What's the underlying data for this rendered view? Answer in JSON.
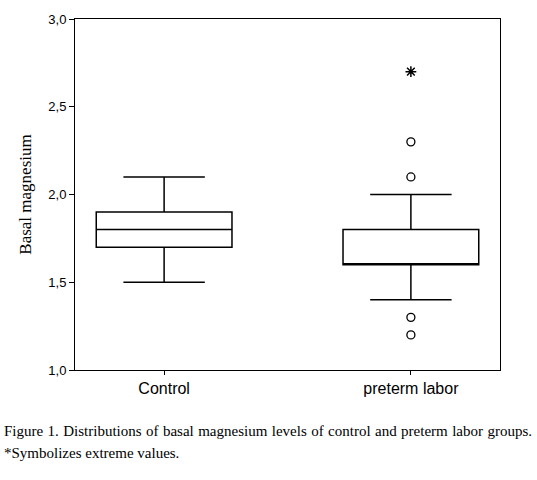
{
  "chart_data": {
    "type": "box",
    "caption": "Figure 1. Distributions of basal magnesium levels of control and preterm labor groups. *Symbolizes extreme values.",
    "y_label": "Basal magnesium",
    "categories": [
      "Control",
      "preterm labor"
    ],
    "boxes": [
      {
        "name": "Control",
        "lowerfence": 1.5,
        "q1": 1.7,
        "median": 1.8,
        "q3": 1.9,
        "upperfence": 2.1,
        "outliers": [],
        "extremes": []
      },
      {
        "name": "preterm labor",
        "lowerfence": 1.4,
        "q1": 1.6,
        "median": 1.6,
        "q3": 1.8,
        "upperfence": 2.0,
        "outliers": [
          2.3,
          2.1,
          1.3,
          1.2
        ],
        "extremes": [
          2.7
        ]
      }
    ],
    "color": "#ffffff",
    "ylim": [
      1.0,
      3.0
    ],
    "yticks": [
      {
        "value": 1.0,
        "label": "1,0"
      },
      {
        "value": 1.5,
        "label": "1,5"
      },
      {
        "value": 2.0,
        "label": "2,0"
      },
      {
        "value": 2.5,
        "label": "2,5"
      },
      {
        "value": 3.0,
        "label": "3,0"
      }
    ],
    "grid": false
  }
}
